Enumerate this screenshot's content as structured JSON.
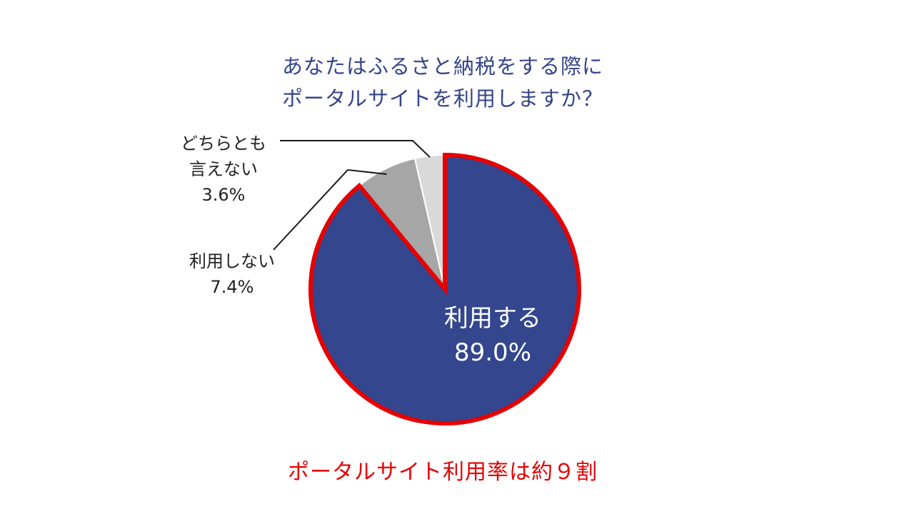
{
  "chart_data": {
    "type": "pie",
    "title_lines": [
      "あなたはふるさと納税をする際に",
      "ポータルサイトを利用しますか？"
    ],
    "slices": [
      {
        "label": "利用する",
        "value_label": "89.0%",
        "value": 89.0,
        "color": "#33468e"
      },
      {
        "label": "利用しない",
        "value_label": "7.4%",
        "value": 7.4,
        "color": "#a6a6a6"
      },
      {
        "label": "どちらとも言えない",
        "label_lines": [
          "どちらとも",
          "言えない"
        ],
        "value_label": "3.6%",
        "value": 3.6,
        "color": "#d9d9d9"
      }
    ],
    "highlight_color": "#e60000",
    "footer_note": "ポータルサイト利用率は約９割"
  }
}
